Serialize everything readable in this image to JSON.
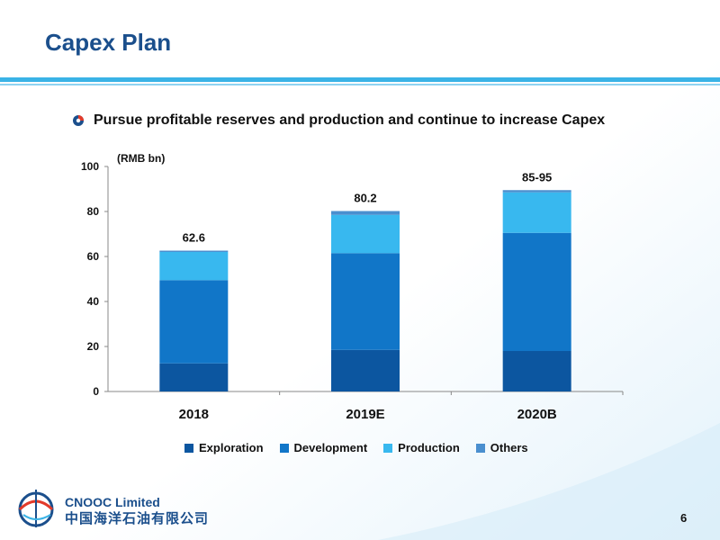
{
  "slide": {
    "title": "Capex Plan",
    "bullet": "Pursue profitable reserves and production and continue to increase Capex",
    "page_number": "6"
  },
  "logo": {
    "company_en": "CNOOC Limited",
    "company_cn": "中国海洋石油有限公司",
    "mark_text": "CNOOC"
  },
  "colors": {
    "title": "#1b4f8c",
    "exploration": "#0c56a0",
    "development": "#1176c8",
    "production": "#38b8ef",
    "others": "#4a8fcf"
  },
  "chart_data": {
    "type": "bar",
    "stacked": true,
    "unit_label": "(RMB bn)",
    "categories": [
      "2018",
      "2019E",
      "2020B"
    ],
    "series": [
      {
        "name": "Exploration",
        "values": [
          12.5,
          18.5,
          18
        ]
      },
      {
        "name": "Development",
        "values": [
          37,
          43,
          52.5
        ]
      },
      {
        "name": "Production",
        "values": [
          12.5,
          17,
          18
        ]
      },
      {
        "name": "Others",
        "values": [
          0.6,
          1.7,
          1.0
        ]
      }
    ],
    "totals_labels": [
      "62.6",
      "80.2",
      "85-95"
    ],
    "ylim": [
      0,
      100
    ],
    "yticks": [
      0,
      20,
      40,
      60,
      80,
      100
    ],
    "grid": false,
    "legend_position": "bottom"
  }
}
